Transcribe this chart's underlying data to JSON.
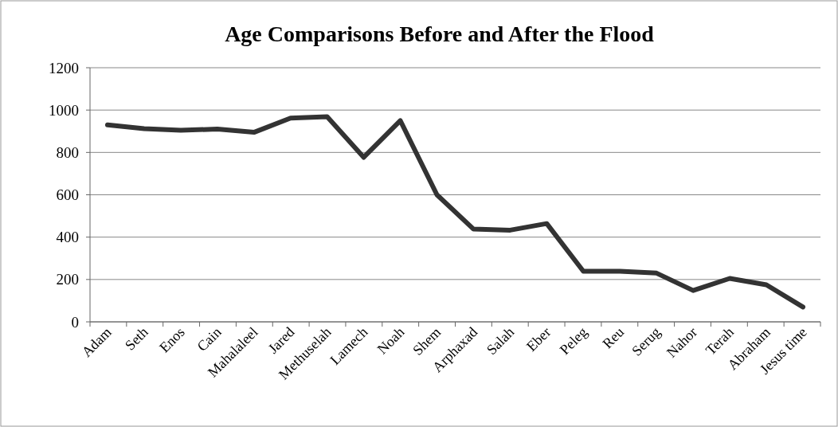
{
  "chart_data": {
    "type": "line",
    "title": "Age Comparisons Before and After the Flood",
    "categories": [
      "Adam",
      "Seth",
      "Enos",
      "Cain",
      "Mahalaleel",
      "Jared",
      "Methuselah",
      "Lamech",
      "Noah",
      "Shem",
      "Arphaxad",
      "Salah",
      "Eber",
      "Peleg",
      "Reu",
      "Serug",
      "Nahor",
      "Terah",
      "Abraham",
      "Jesus time"
    ],
    "series": [
      {
        "color": "#333333",
        "values": [
          930,
          912,
          905,
          910,
          895,
          962,
          969,
          777,
          950,
          600,
          438,
          433,
          464,
          239,
          239,
          230,
          148,
          205,
          175,
          70
        ]
      }
    ],
    "ylim": [
      0,
      1200
    ],
    "yticks": [
      0,
      200,
      400,
      600,
      800,
      1000,
      1200
    ],
    "grid": "y",
    "marker": "none",
    "line_style": "solid"
  }
}
